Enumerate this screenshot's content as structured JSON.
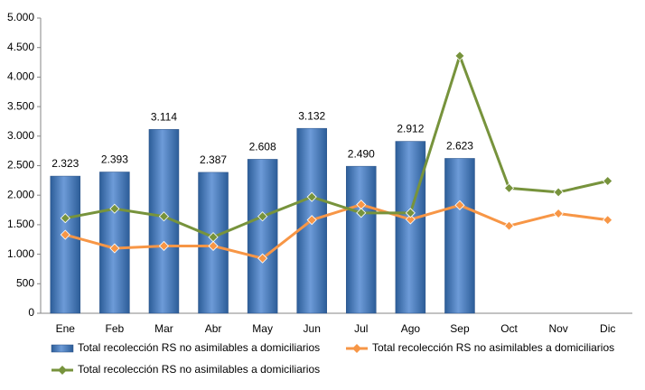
{
  "chart_data": {
    "type": "bar",
    "categories": [
      "Ene",
      "Feb",
      "Mar",
      "Abr",
      "May",
      "Jun",
      "Jul",
      "Ago",
      "Sep",
      "Oct",
      "Nov",
      "Dic"
    ],
    "ylim": [
      0,
      5000
    ],
    "yticks": [
      0,
      500,
      {
        "value": 1000,
        "label": "1.000"
      },
      {
        "value": 1500,
        "label": "1.500"
      },
      {
        "value": 2000,
        "label": "2.000"
      },
      {
        "value": 2500,
        "label": "2.500"
      },
      {
        "value": 3000,
        "label": "3.000"
      },
      {
        "value": 3500,
        "label": "3.500"
      },
      {
        "value": 4000,
        "label": "4.000"
      },
      {
        "value": 4500,
        "label": "4.500"
      },
      {
        "value": 5000,
        "label": "5.000"
      }
    ],
    "grid": false,
    "legend": "bottom",
    "series": [
      {
        "name": "Total recolección RS no asimilables a domiciliarios",
        "type": "bar",
        "color": "#4f81bd",
        "values": [
          2323,
          2393,
          3114,
          2387,
          2608,
          3132,
          2490,
          2912,
          2623,
          null,
          null,
          null
        ],
        "value_labels": [
          "2.323",
          "2.393",
          "3.114",
          "2.387",
          "2.608",
          "3.132",
          "2.490",
          "2.912",
          "2.623",
          null,
          null,
          null
        ]
      },
      {
        "name": "Total recolección RS no asimilables a domiciliarios",
        "type": "line",
        "color": "#f79646",
        "values": [
          1330,
          1100,
          1140,
          1140,
          930,
          1580,
          1840,
          1590,
          1830,
          1480,
          1690,
          1580
        ]
      },
      {
        "name": "Total recolección RS no asimilables a domiciliarios",
        "type": "line",
        "color": "#77933c",
        "values": [
          1610,
          1770,
          1640,
          1290,
          1640,
          1970,
          1700,
          1700,
          4360,
          2120,
          2050,
          2240
        ]
      }
    ]
  }
}
